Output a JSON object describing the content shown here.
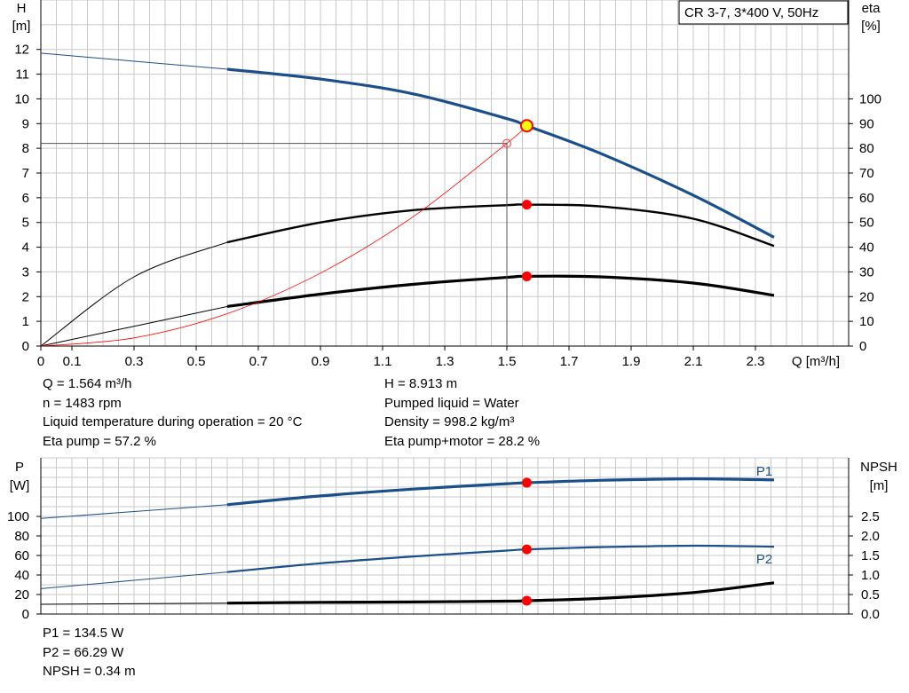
{
  "chart_data": [
    {
      "type": "line",
      "title": "CR 3-7, 3*400 V, 50Hz",
      "xlabel": "Q [m³/h]",
      "ylabel_left": "H",
      "ylabel_left_unit": "[m]",
      "ylabel_right": "eta",
      "ylabel_right_unit": "[%]",
      "xlim": [
        0,
        2.6
      ],
      "ylim_left": [
        0,
        14
      ],
      "ylim_right": [
        0,
        140
      ],
      "x_ticks": [
        "0",
        "0.1",
        "0.3",
        "0.5",
        "0.7",
        "0.9",
        "1.1",
        "1.3",
        "1.5",
        "1.7",
        "1.9",
        "2.1",
        "2.3"
      ],
      "y_ticks_left": [
        "0",
        "1",
        "2",
        "3",
        "4",
        "5",
        "6",
        "7",
        "8",
        "9",
        "10",
        "11",
        "12"
      ],
      "y_ticks_right": [
        "0",
        "10",
        "20",
        "30",
        "40",
        "50",
        "60",
        "70",
        "80",
        "90",
        "100"
      ],
      "grid": true,
      "series": [
        {
          "axis": "left",
          "color": "#1a4f8b",
          "x": [
            0,
            0.6,
            0.9,
            1.2,
            1.5,
            1.564,
            1.8,
            2.1,
            2.36
          ],
          "y": [
            11.85,
            11.2,
            10.8,
            10.2,
            9.2,
            8.913,
            7.8,
            6.1,
            4.4
          ]
        },
        {
          "axis": "right",
          "color": "#000000",
          "x": [
            0,
            0.3,
            0.6,
            0.9,
            1.2,
            1.5,
            1.564,
            1.8,
            2.1,
            2.36
          ],
          "y": [
            0,
            28,
            42,
            50,
            55,
            57,
            57.2,
            56.5,
            51.5,
            40.5
          ]
        },
        {
          "axis": "right",
          "color": "#000000",
          "x": [
            0,
            0.3,
            0.6,
            0.9,
            1.2,
            1.5,
            1.564,
            1.8,
            2.1,
            2.36
          ],
          "y": [
            0,
            8,
            16,
            21,
            25,
            27.8,
            28.2,
            28.0,
            25.5,
            20.5
          ]
        },
        {
          "axis": "left",
          "color": "#ff0000",
          "x": [
            0,
            0.3,
            0.6,
            0.9,
            1.2,
            1.5,
            1.564
          ],
          "y": [
            0,
            0.33,
            1.31,
            2.95,
            5.25,
            8.2,
            8.913
          ]
        }
      ],
      "operating_point": {
        "q": 1.564,
        "h": 8.913,
        "eta_pump": 57.2,
        "eta_total": 28.2
      },
      "reference_point": {
        "q": 1.5,
        "h": 8.2
      }
    },
    {
      "type": "line",
      "xlim": [
        0,
        2.6
      ],
      "ylabel_left": "P",
      "ylabel_left_unit": "[W]",
      "ylabel_right": "NPSH",
      "ylabel_right_unit": "[m]",
      "ylim_left": [
        0,
        160
      ],
      "ylim_right": [
        0,
        4
      ],
      "y_ticks_left": [
        "0",
        "20",
        "40",
        "60",
        "80",
        "100"
      ],
      "y_ticks_right": [
        "0.0",
        "0.5",
        "1.0",
        "1.5",
        "2.0",
        "2.5"
      ],
      "grid": true,
      "series": [
        {
          "name": "P1",
          "axis": "left",
          "color": "#1a4f8b",
          "x": [
            0,
            0.6,
            0.9,
            1.2,
            1.5,
            1.564,
            1.8,
            2.1,
            2.36
          ],
          "y": [
            98,
            112,
            121,
            128,
            133.5,
            134.5,
            137,
            138.5,
            137.5
          ]
        },
        {
          "name": "P2",
          "axis": "left",
          "color": "#1a4f8b",
          "x": [
            0,
            0.6,
            0.9,
            1.2,
            1.5,
            1.564,
            1.8,
            2.1,
            2.36
          ],
          "y": [
            26,
            43,
            52,
            59,
            65,
            66.29,
            68.5,
            70,
            69
          ]
        },
        {
          "axis": "right",
          "color": "#000000",
          "x": [
            0,
            0.6,
            0.9,
            1.2,
            1.5,
            1.564,
            1.8,
            2.1,
            2.36
          ],
          "y": [
            0.25,
            0.28,
            0.3,
            0.31,
            0.33,
            0.34,
            0.4,
            0.55,
            0.8
          ]
        }
      ],
      "operating_point": {
        "q": 1.564,
        "p1": 134.5,
        "p2": 66.29,
        "npsh": 0.34
      }
    }
  ],
  "info": {
    "q": "Q = 1.564 m³/h",
    "n": "n = 1483 rpm",
    "liquid_temp": "Liquid temperature during operation = 20 °C",
    "eta_pump": "Eta pump = 57.2 %",
    "h": "H = 8.913 m",
    "pumped_liquid": "Pumped liquid = Water",
    "density": "Density = 998.2 kg/m³",
    "eta_total": "Eta pump+motor = 28.2 %",
    "p1": "P1 = 134.5 W",
    "p2": "P2 = 66.29 W",
    "npsh": "NPSH = 0.34 m"
  }
}
